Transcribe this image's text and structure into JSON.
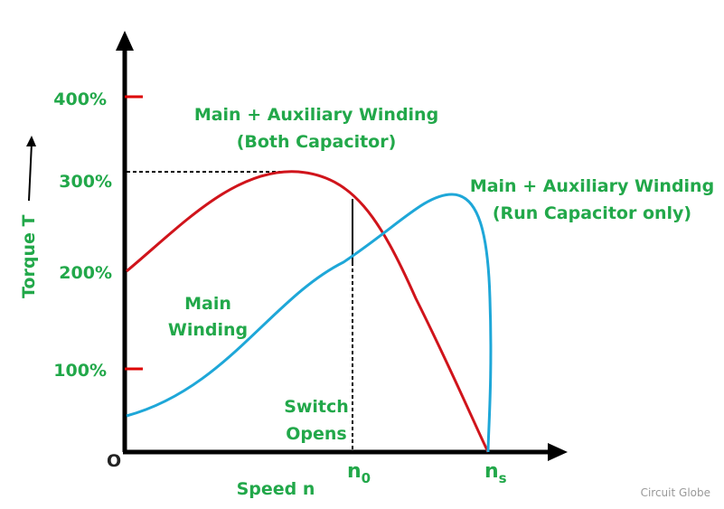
{
  "axes": {
    "y_label": "Torque T",
    "x_label": "Speed n",
    "origin": "O",
    "y_ticks": [
      "400%",
      "300%",
      "200%",
      "100%"
    ],
    "x_marks": [
      {
        "base": "n",
        "sub": "0"
      },
      {
        "base": "n",
        "sub": "s"
      }
    ]
  },
  "annotations": {
    "both_capacitor": [
      "Main + Auxiliary Winding",
      "(Both Capacitor)"
    ],
    "run_capacitor": [
      "Main + Auxiliary Winding",
      "(Run Capacitor only)"
    ],
    "main": [
      "Main",
      "Winding"
    ],
    "switch": [
      "Switch",
      "Opens"
    ]
  },
  "watermark": "Circuit Globe"
}
